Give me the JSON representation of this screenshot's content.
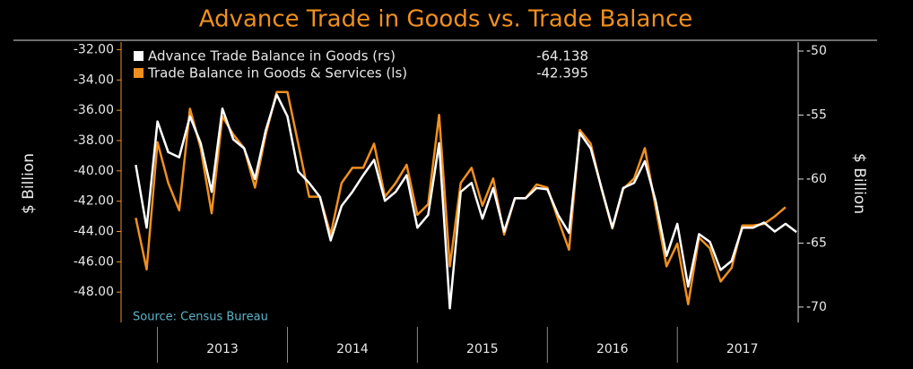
{
  "chart_data": {
    "type": "line",
    "title": "Advance Trade in Goods vs. Trade Balance",
    "y_label": "$ Billion",
    "y2_label": "$ Billion",
    "source": "Source: Census Bureau",
    "x": [
      2012.833,
      2012.917,
      2013.0,
      2013.083,
      2013.167,
      2013.25,
      2013.333,
      2013.417,
      2013.5,
      2013.583,
      2013.667,
      2013.75,
      2013.833,
      2013.917,
      2014.0,
      2014.083,
      2014.167,
      2014.25,
      2014.333,
      2014.417,
      2014.5,
      2014.583,
      2014.667,
      2014.75,
      2014.833,
      2014.917,
      2015.0,
      2015.083,
      2015.167,
      2015.25,
      2015.333,
      2015.417,
      2015.5,
      2015.583,
      2015.667,
      2015.75,
      2015.833,
      2015.917,
      2016.0,
      2016.083,
      2016.167,
      2016.25,
      2016.333,
      2016.417,
      2016.5,
      2016.583,
      2016.667,
      2016.75,
      2016.833,
      2016.917,
      2017.0,
      2017.083,
      2017.167,
      2017.25,
      2017.333,
      2017.417,
      2017.5,
      2017.583,
      2017.667,
      2017.75,
      2017.833,
      2017.917
    ],
    "xlim": [
      2012.72,
      2017.93
    ],
    "xticks": [
      {
        "value": 2013.5,
        "label": "2013"
      },
      {
        "value": 2014.5,
        "label": "2014"
      },
      {
        "value": 2015.5,
        "label": "2015"
      },
      {
        "value": 2016.5,
        "label": "2016"
      },
      {
        "value": 2017.5,
        "label": "2017"
      }
    ],
    "ylim": [
      -50,
      -31.5
    ],
    "yticks": [
      {
        "value": -32,
        "label": "-32.00"
      },
      {
        "value": -34,
        "label": "-34.00"
      },
      {
        "value": -36,
        "label": "-36.00"
      },
      {
        "value": -38,
        "label": "-38.00"
      },
      {
        "value": -40,
        "label": "-40.00"
      },
      {
        "value": -42,
        "label": "-42.00"
      },
      {
        "value": -44,
        "label": "-44.00"
      },
      {
        "value": -46,
        "label": "-46.00"
      },
      {
        "value": -48,
        "label": "-48.00"
      }
    ],
    "y2lim": [
      -71.2,
      -49.3
    ],
    "y2ticks": [
      -50,
      -55,
      -60,
      -65,
      -70
    ],
    "legend": "upper left",
    "series": [
      {
        "name": "Advance Trade Balance in Goods (rs)",
        "color": "#ffffff",
        "axis": "y2",
        "values": [
          -58.9,
          -63.8,
          -55.5,
          -57.9,
          -58.3,
          -55.1,
          -57.2,
          -61.0,
          -54.5,
          -56.9,
          -57.6,
          -60.0,
          -56.2,
          -53.4,
          -55.1,
          -59.4,
          -60.3,
          -61.4,
          -64.8,
          -62.1,
          -61.0,
          -59.7,
          -58.5,
          -61.7,
          -61.0,
          -59.7,
          -63.8,
          -62.8,
          -57.2,
          -70.1,
          -61.0,
          -60.3,
          -63.1,
          -60.7,
          -64.1,
          -61.5,
          -61.5,
          -60.7,
          -60.8,
          -62.8,
          -64.2,
          -56.4,
          -57.6,
          -60.7,
          -63.8,
          -60.7,
          -60.3,
          -58.6,
          -61.7,
          -66.0,
          -63.5,
          -68.4,
          -64.3,
          -64.9,
          -67.1,
          -66.4,
          -63.8,
          -63.8,
          -63.4,
          -64.1,
          -63.5,
          -64.138
        ]
      },
      {
        "name": "Trade Balance in Goods & Services (ls)",
        "color": "#f0901e",
        "values": [
          -43.1,
          -46.5,
          -38.1,
          -40.8,
          -42.6,
          -35.9,
          -38.5,
          -42.8,
          -36.4,
          -37.6,
          -38.5,
          -41.1,
          -37.6,
          -34.8,
          -34.8,
          -38.2,
          -41.7,
          -41.7,
          -44.2,
          -40.8,
          -39.8,
          -39.8,
          -38.2,
          -41.7,
          -40.8,
          -39.6,
          -42.9,
          -42.2,
          -36.3,
          -46.3,
          -40.8,
          -39.8,
          -42.3,
          -40.5,
          -44.2,
          -41.8,
          -41.8,
          -40.9,
          -41.1,
          -43.2,
          -45.2,
          -37.3,
          -38.2,
          -41.2,
          -43.8,
          -41.2,
          -40.5,
          -38.5,
          -42.4,
          -46.3,
          -44.8,
          -48.8,
          -44.4,
          -45.1,
          -47.3,
          -46.4,
          -43.6,
          -43.6,
          -43.5,
          -43.0,
          -42.395,
          null
        ]
      }
    ]
  }
}
